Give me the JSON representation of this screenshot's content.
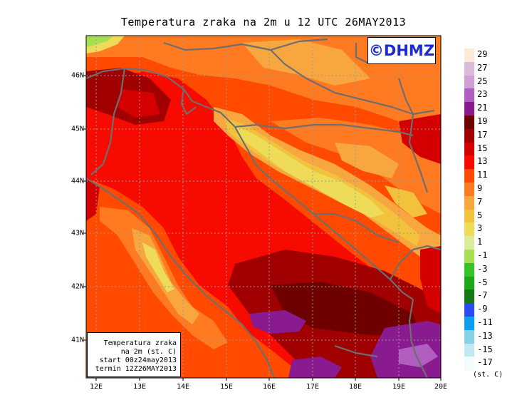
{
  "title": "Temperatura zraka na 2m u 12 UTC 26MAY2013",
  "badge": "©DHMZ",
  "info": {
    "line1": "Temperatura zraka",
    "line2": "na 2m (st. C)",
    "line3": "start 00z24may2013",
    "line4": "termin 12Z26MAY2013"
  },
  "x_ticks": [
    "12E",
    "13E",
    "14E",
    "15E",
    "16E",
    "17E",
    "18E",
    "19E",
    "20E"
  ],
  "y_ticks": [
    "46N",
    "45N",
    "44N",
    "43N",
    "42N",
    "41N"
  ],
  "legend": {
    "labels": [
      "29",
      "27",
      "25",
      "23",
      "21",
      "19",
      "17",
      "15",
      "13",
      "11",
      "9",
      "7",
      "5",
      "3",
      "1",
      "-1",
      "-3",
      "-5",
      "-7",
      "-9",
      "-11",
      "-13",
      "-15",
      "-17"
    ],
    "colors": [
      "#fdebd8",
      "#d9bcd8",
      "#d29fd4",
      "#b05fc0",
      "#8a1a90",
      "#6e0000",
      "#a00000",
      "#d40000",
      "#f70b00",
      "#ff4a00",
      "#ff7a20",
      "#f7a640",
      "#f2c23c",
      "#eedc58",
      "#dcec9c",
      "#a6e052",
      "#38c22a",
      "#1ca81c",
      "#157a15",
      "#2b4cf0",
      "#0c9ef0",
      "#88d0e8",
      "#c2e8f2",
      "#f2fcfc"
    ],
    "unit": "(st. C)"
  }
}
